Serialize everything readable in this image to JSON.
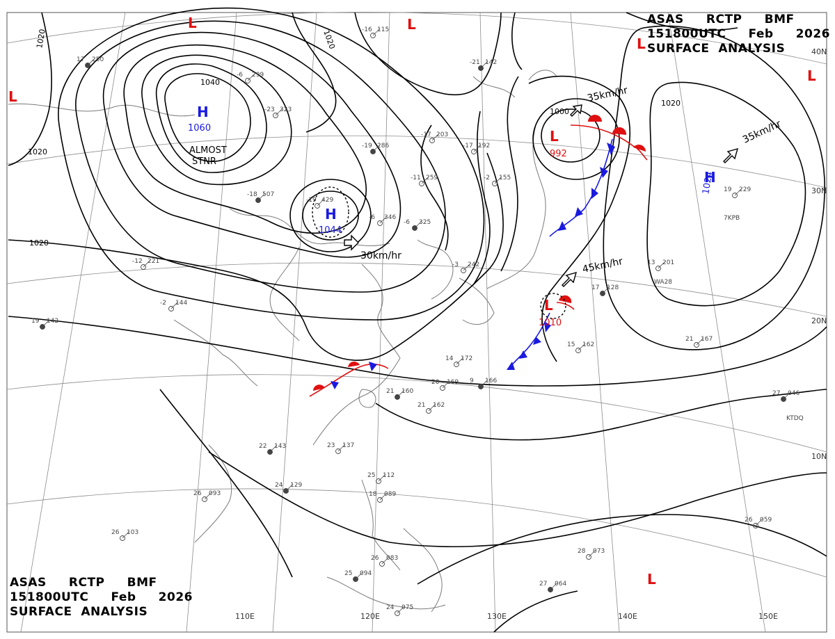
{
  "header": {
    "line1": "ASAS     RCTP     BMF",
    "line2": "151800UTC     Feb     2026",
    "line3": "SURFACE  ANALYSIS"
  },
  "lat_labels": [
    "40N",
    "30N",
    "20N",
    "10N"
  ],
  "lon_labels": [
    "110E",
    "120E",
    "130E",
    "140E",
    "150E"
  ],
  "isobar_labels": [
    "1020",
    "1020",
    "1020",
    "1020",
    "1040",
    "1020",
    "1000",
    "1020"
  ],
  "pressure_centers": [
    {
      "type": "H",
      "value": "1060",
      "note1": "ALMOST",
      "note2": "STNR",
      "color": "#1a1adf"
    },
    {
      "type": "H",
      "value": "1044",
      "color": "#1a1adf"
    },
    {
      "type": "H",
      "value": "1024",
      "color": "#1a1adf"
    },
    {
      "type": "L",
      "value": "992",
      "color": "#e01010"
    },
    {
      "type": "L",
      "value": "1010",
      "color": "#e01010"
    },
    {
      "type": "L",
      "value": "",
      "color": "#e01010"
    }
  ],
  "motion_labels": [
    "30km/hr",
    "35km/hr",
    "35km/hr",
    "45km/hr"
  ],
  "stations": [
    {
      "t": "17",
      "p": "250"
    },
    {
      "t": "-6",
      "p": "299"
    },
    {
      "t": "-16",
      "p": "115"
    },
    {
      "t": "-21",
      "p": "142"
    },
    {
      "t": "-23",
      "p": "323"
    },
    {
      "t": "-17",
      "p": "203"
    },
    {
      "t": "-19",
      "p": "286"
    },
    {
      "t": "-17",
      "p": "192"
    },
    {
      "t": "-11",
      "p": "259"
    },
    {
      "t": "-18",
      "p": "507"
    },
    {
      "t": "-19",
      "p": "429"
    },
    {
      "t": "-6",
      "p": "346"
    },
    {
      "t": "-6",
      "p": "325"
    },
    {
      "t": "-12",
      "p": "221"
    },
    {
      "t": "-2",
      "p": "144"
    },
    {
      "t": "19",
      "p": "142"
    },
    {
      "t": "14",
      "p": "172"
    },
    {
      "t": "20",
      "p": "169"
    },
    {
      "t": "21",
      "p": "160"
    },
    {
      "t": "21",
      "p": "162"
    },
    {
      "t": "23",
      "p": "137"
    },
    {
      "t": "24",
      "p": "129"
    },
    {
      "t": "26",
      "p": "093"
    },
    {
      "t": "26",
      "p": "103"
    },
    {
      "t": "25",
      "p": "094"
    },
    {
      "t": "24",
      "p": "075"
    },
    {
      "t": "26",
      "p": "083"
    },
    {
      "t": "27",
      "p": "064"
    },
    {
      "t": "28",
      "p": "073"
    },
    {
      "t": "26",
      "p": "059"
    },
    {
      "t": "27",
      "p": "046"
    },
    {
      "t": "21",
      "p": "167"
    },
    {
      "t": "15",
      "p": "162"
    },
    {
      "t": "17",
      "p": "128"
    },
    {
      "t": "13",
      "p": "201"
    },
    {
      "t": "19",
      "p": "229"
    },
    {
      "t": "22",
      "p": "143"
    },
    {
      "t": "18",
      "p": "089"
    },
    {
      "t": "25",
      "p": "112"
    },
    {
      "t": "9",
      "p": "166"
    },
    {
      "t": "-2",
      "p": "155"
    },
    {
      "t": "-3",
      "p": "242"
    }
  ],
  "station_ids": [
    "WA28",
    "7KPB",
    "KTDQ"
  ],
  "colors": {
    "high": "#1a1adf",
    "low": "#e01010",
    "line": "#000000",
    "coast": "#7a7a7a",
    "grid": "#8c8c8c"
  }
}
